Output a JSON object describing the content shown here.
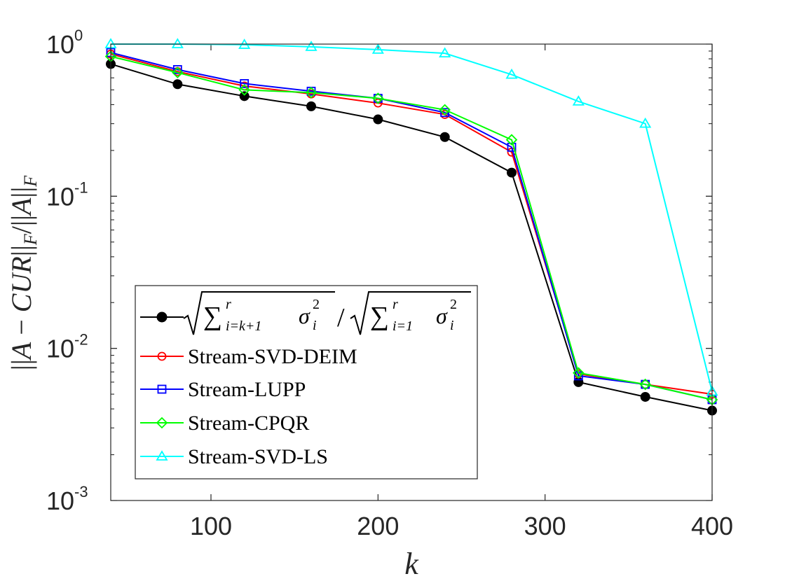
{
  "chart_data": {
    "type": "line",
    "xlabel": "k",
    "ylabel": "||A − CUR||_F / ||A||_F",
    "ylabel_parts": {
      "p1": "||",
      "A": "A",
      "minus": " − ",
      "CUR": "CUR",
      "p2": "||",
      "F1": "F",
      "slash": "/",
      "p3": "||",
      "A2": "A",
      "p4": "||",
      "F2": "F"
    },
    "xlim": [
      40,
      400
    ],
    "ylim": [
      0.001,
      1.0
    ],
    "yscale": "log",
    "grid": false,
    "legend_position": "lower-left",
    "x": [
      40,
      80,
      120,
      160,
      200,
      240,
      280,
      320,
      360,
      400
    ],
    "xticks": [
      {
        "value": 100,
        "label": "100"
      },
      {
        "value": 200,
        "label": "200"
      },
      {
        "value": 300,
        "label": "300"
      },
      {
        "value": 400,
        "label": "400"
      }
    ],
    "yticks": [
      {
        "value": 1.0,
        "base": "10",
        "exp": "0"
      },
      {
        "value": 0.1,
        "base": "10",
        "exp": "-1"
      },
      {
        "value": 0.01,
        "base": "10",
        "exp": "-2"
      },
      {
        "value": 0.001,
        "base": "10",
        "exp": "-3"
      }
    ],
    "series": [
      {
        "id": "truncation-bound",
        "name": "√(Σ_{i=k+1}^r σ_i²) / √(Σ_{i=1}^r σ_i²)",
        "color": "#000000",
        "marker": "filled-circle",
        "values": [
          0.74,
          0.545,
          0.455,
          0.39,
          0.32,
          0.245,
          0.143,
          0.006,
          0.0048,
          0.0039
        ]
      },
      {
        "id": "stream-svd-deim",
        "name": "Stream-SVD-DEIM",
        "color": "#ff0000",
        "marker": "circle",
        "values": [
          0.86,
          0.66,
          0.53,
          0.47,
          0.41,
          0.345,
          0.195,
          0.0068,
          0.0058,
          0.005
        ]
      },
      {
        "id": "stream-lupp",
        "name": "Stream-LUPP",
        "color": "#0000ff",
        "marker": "square",
        "values": [
          0.88,
          0.68,
          0.55,
          0.49,
          0.44,
          0.355,
          0.21,
          0.0066,
          0.0058,
          0.0046
        ]
      },
      {
        "id": "stream-cpqr",
        "name": "Stream-CPQR",
        "color": "#00ff00",
        "marker": "diamond",
        "values": [
          0.83,
          0.65,
          0.5,
          0.48,
          0.44,
          0.37,
          0.235,
          0.0069,
          0.0058,
          0.0046
        ]
      },
      {
        "id": "stream-svd-ls",
        "name": "Stream-SVD-LS",
        "color": "#00ffff",
        "marker": "triangle",
        "values": [
          1.0,
          1.0,
          0.99,
          0.96,
          0.92,
          0.87,
          0.63,
          0.42,
          0.3,
          0.0052
        ]
      }
    ],
    "legend": {
      "formula": {
        "sum": "∑",
        "sup1": "r",
        "sub1": "i=k+1",
        "sigma1": "σ",
        "sub_i1": "i",
        "sup_21": "2",
        "slash": "/",
        "sup2": "r",
        "sub2": "i=1",
        "sigma2": "σ",
        "sub_i2": "i",
        "sup_22": "2"
      },
      "labels": [
        "Stream-SVD-DEIM",
        "Stream-LUPP",
        "Stream-CPQR",
        "Stream-SVD-LS"
      ]
    }
  }
}
